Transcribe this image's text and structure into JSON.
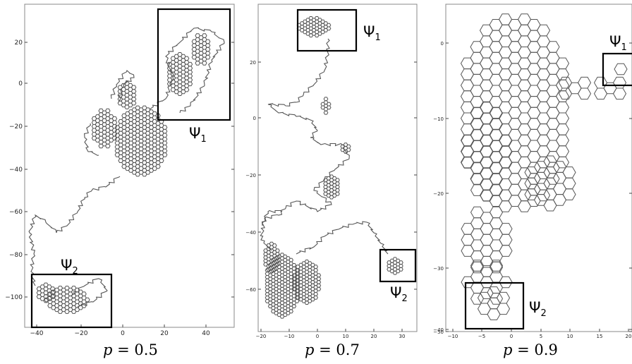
{
  "panels": [
    {
      "caption_p": "p",
      "caption_value": "= 0.5",
      "x_ticks": [
        "−40",
        "−20",
        "0",
        "20",
        "40"
      ],
      "y_ticks": [
        "20",
        "0",
        "−20",
        "−40",
        "−60",
        "−80",
        "−100"
      ],
      "boxes": [
        {
          "label": "Ψ",
          "sub": "1"
        },
        {
          "label": "Ψ",
          "sub": "2"
        }
      ]
    },
    {
      "caption_p": "p",
      "caption_value": "= 0.7",
      "x_ticks": [
        "−20",
        "−10",
        "0",
        "10",
        "20",
        "30"
      ],
      "y_ticks": [
        "20",
        "0",
        "−20",
        "−40",
        "−60"
      ],
      "boxes": [
        {
          "label": "Ψ",
          "sub": "1"
        },
        {
          "label": "Ψ",
          "sub": "2"
        }
      ]
    },
    {
      "caption_p": "p",
      "caption_value": "= 0.9",
      "x_ticks": [
        "−10",
        "−5",
        "0",
        "5",
        "10",
        "15",
        "20"
      ],
      "y_ticks": [
        "0",
        "−10",
        "−20",
        "−30",
        "−40",
        "−50"
      ],
      "boxes": [
        {
          "label": "Ψ",
          "sub": "1"
        },
        {
          "label": "Ψ",
          "sub": "2"
        }
      ]
    }
  ],
  "colors": {
    "cluster_stroke": "#555555",
    "frame": "#000000"
  }
}
